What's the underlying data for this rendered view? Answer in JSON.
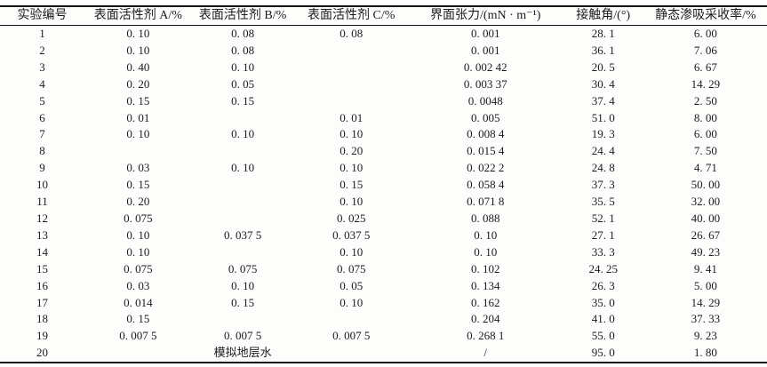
{
  "table": {
    "columns": [
      {
        "key": "experiment-id",
        "label": "实验编号"
      },
      {
        "key": "surfactant-a",
        "label": "表面活性剂 A/%"
      },
      {
        "key": "surfactant-b",
        "label": "表面活性剂 B/%"
      },
      {
        "key": "surfactant-c",
        "label": "表面活性剂 C/%"
      },
      {
        "key": "interfacial-tension",
        "label": "界面张力/(mN · m⁻¹)"
      },
      {
        "key": "contact-angle",
        "label": "接触角/(°)"
      },
      {
        "key": "static-imbibition-recovery",
        "label": "静态渗吸采收率/%"
      }
    ],
    "rows": [
      [
        "1",
        "0. 10",
        "0. 08",
        "0. 08",
        "0. 001",
        "28. 1",
        "6. 00"
      ],
      [
        "2",
        "0. 10",
        "0. 08",
        "",
        "0. 001",
        "36. 1",
        "7. 06"
      ],
      [
        "3",
        "0. 40",
        "0. 10",
        "",
        "0. 002 42",
        "20. 5",
        "6. 67"
      ],
      [
        "4",
        "0. 20",
        "0. 05",
        "",
        "0. 003 37",
        "30. 4",
        "14. 29"
      ],
      [
        "5",
        "0. 15",
        "0. 15",
        "",
        "0. 0048",
        "37. 4",
        "2. 50"
      ],
      [
        "6",
        "0. 01",
        "",
        "0. 01",
        "0. 005",
        "51. 0",
        "8. 00"
      ],
      [
        "7",
        "0. 10",
        "0. 10",
        "0. 10",
        "0. 008 4",
        "19. 3",
        "6. 00"
      ],
      [
        "8",
        "",
        "",
        "0. 20",
        "0. 015 4",
        "24. 4",
        "7. 50"
      ],
      [
        "9",
        "0. 03",
        "0. 10",
        "0. 10",
        "0. 022 2",
        "24. 8",
        "4. 71"
      ],
      [
        "10",
        "0. 15",
        "",
        "0. 15",
        "0. 058 4",
        "37. 3",
        "50. 00"
      ],
      [
        "11",
        "0. 20",
        "",
        "0. 10",
        "0. 071 8",
        "35. 5",
        "32. 00"
      ],
      [
        "12",
        "0. 075",
        "",
        "0. 025",
        "0. 088",
        "52. 1",
        "40. 00"
      ],
      [
        "13",
        "0. 10",
        "0. 037 5",
        "0. 037 5",
        "0. 10",
        "27. 1",
        "26. 67"
      ],
      [
        "14",
        "0. 10",
        "",
        "0. 10",
        "0. 10",
        "33. 3",
        "49. 23"
      ],
      [
        "15",
        "0. 075",
        "0. 075",
        "0. 075",
        "0. 102",
        "24. 25",
        "9. 41"
      ],
      [
        "16",
        "0. 03",
        "0. 10",
        "0. 05",
        "0. 134",
        "26. 3",
        "5. 00"
      ],
      [
        "17",
        "0. 014",
        "0. 15",
        "0. 10",
        "0. 162",
        "35. 0",
        "14. 29"
      ],
      [
        "18",
        "0. 15",
        "",
        "",
        "0. 204",
        "41. 0",
        "37. 33"
      ],
      [
        "19",
        "0. 007 5",
        "0. 007 5",
        "0. 007 5",
        "0. 268 1",
        "55. 0",
        "9. 23"
      ],
      [
        "20",
        "",
        "模拟地层水",
        "",
        "/",
        "95. 0",
        "1. 80"
      ]
    ]
  }
}
